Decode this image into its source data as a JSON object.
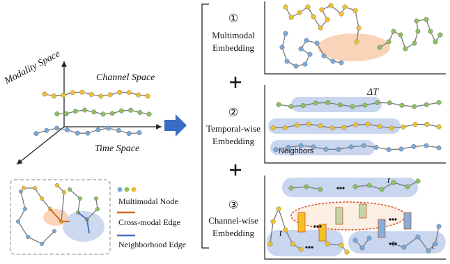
{
  "axes": {
    "modality": "Modality Space",
    "channel": "Channel Space",
    "time": "Time Space"
  },
  "legend": {
    "node": "Multimodal Node",
    "cross": "Cross-modal Edge",
    "neighbor": "Neighborhood Edge"
  },
  "steps": [
    {
      "number": "①",
      "lines": [
        "Multimodal",
        "Embedding"
      ]
    },
    {
      "number": "②",
      "lines": [
        "Temporal-wise",
        "Embedding"
      ]
    },
    {
      "number": "③",
      "lines": [
        "Channel-wise",
        "Embedding"
      ]
    }
  ],
  "annotations": {
    "delta": "ΔT",
    "neighbors": "Neighbors",
    "time_marks": [
      "t",
      "t",
      "t"
    ]
  }
}
